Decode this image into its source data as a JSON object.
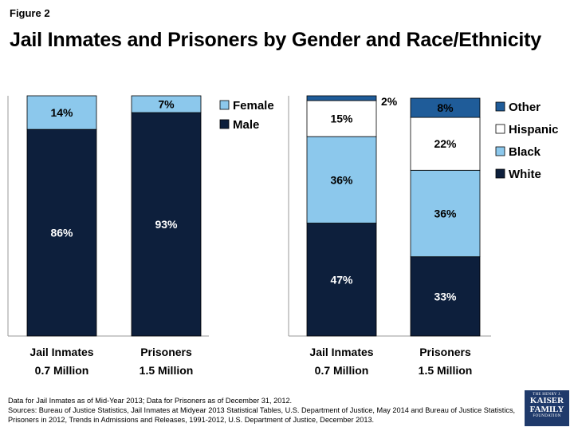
{
  "figure_label": "Figure 2",
  "title": "Jail Inmates and Prisoners by Gender and Race/Ethnicity",
  "chart_data": [
    {
      "type": "bar",
      "stacked": true,
      "title": "Gender",
      "categories": [
        "Jail Inmates",
        "Prisoners"
      ],
      "category_sublabels": [
        "0.7 Million",
        "1.5 Million"
      ],
      "series": [
        {
          "name": "Male",
          "values": [
            86,
            93
          ],
          "color": "#0d1f3c",
          "label_color": "#ffffff"
        },
        {
          "name": "Female",
          "values": [
            14,
            7
          ],
          "color": "#8cc8ec",
          "label_color": "#000000"
        }
      ],
      "legend": [
        "Female",
        "Male"
      ],
      "ylim": [
        0,
        100
      ],
      "value_suffix": "%"
    },
    {
      "type": "bar",
      "stacked": true,
      "title": "Race/Ethnicity",
      "categories": [
        "Jail Inmates",
        "Prisoners"
      ],
      "category_sublabels": [
        "0.7 Million",
        "1.5 Million"
      ],
      "series": [
        {
          "name": "White",
          "values": [
            47,
            33
          ],
          "color": "#0d1f3c",
          "label_color": "#ffffff"
        },
        {
          "name": "Black",
          "values": [
            36,
            36
          ],
          "color": "#8cc8ec",
          "label_color": "#000000"
        },
        {
          "name": "Hispanic",
          "values": [
            15,
            22
          ],
          "color": "#ffffff",
          "label_color": "#000000"
        },
        {
          "name": "Other",
          "values": [
            2,
            8
          ],
          "color": "#1f5c99",
          "label_color": "#000000"
        }
      ],
      "legend": [
        "Other",
        "Hispanic",
        "Black",
        "White"
      ],
      "ylim": [
        0,
        100
      ],
      "value_suffix": "%"
    }
  ],
  "footer": {
    "line1": "Data for Jail Inmates as of Mid-Year 2013; Data for Prisoners as of December 31, 2012.",
    "line2": "Sources: Bureau of Justice Statistics, Jail Inmates at Midyear 2013 Statistical Tables, U.S. Department of Justice, May 2014 and Bureau of Justice Statistics, Prisoners in 2012, Trends in Admissions and Releases, 1991-2012, U.S. Department of Justice, December 2013."
  },
  "logo": {
    "top": "THE HENRY J.",
    "line1": "KAISER",
    "line2": "FAMILY",
    "bottom": "FOUNDATION"
  }
}
